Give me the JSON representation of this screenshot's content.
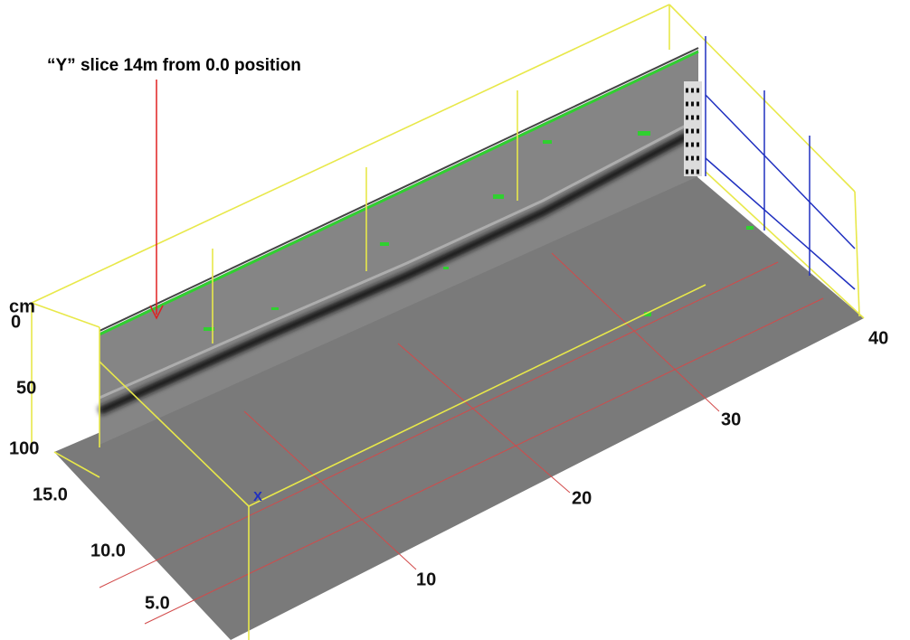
{
  "annotation": {
    "text": "“Y” slice 14m from 0.0 position"
  },
  "depth_axis": {
    "unit": "cm",
    "labels": [
      "0",
      "50",
      "100"
    ]
  },
  "y_axis": {
    "labels": [
      "15.0",
      "10.0",
      "5.0"
    ]
  },
  "x_axis": {
    "labels": [
      "10",
      "20",
      "30",
      "40"
    ],
    "marker": "X"
  }
}
